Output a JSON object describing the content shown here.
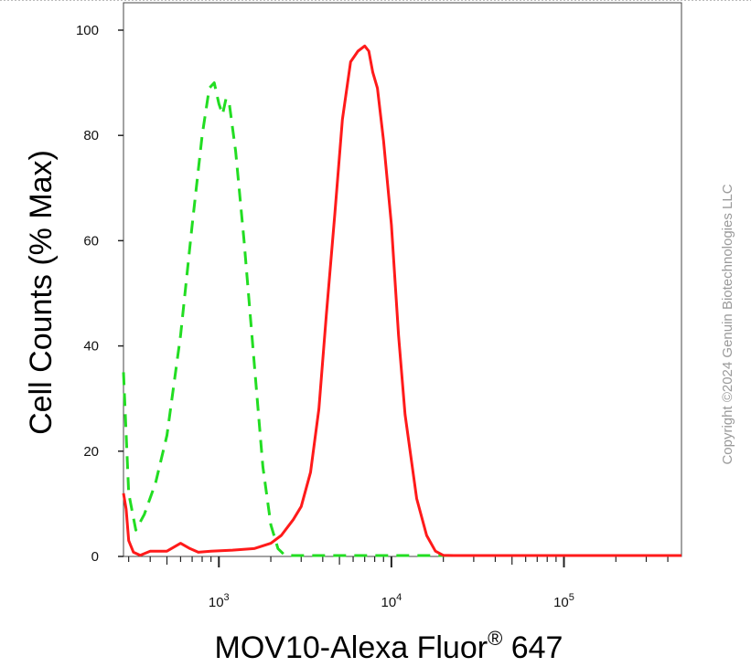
{
  "chart_data": {
    "type": "line",
    "xlabel": "MOV10-Alexa Fluor",
    "xlabel_superscript": "®",
    "xlabel_suffix": " 647",
    "ylabel": "Cell Counts (% Max)",
    "x_scale": "log",
    "xlim": [
      280,
      480000
    ],
    "ylim": [
      0,
      105
    ],
    "y_ticks": [
      0,
      20,
      40,
      60,
      80,
      100
    ],
    "x_ticks": [
      {
        "base": "10",
        "exp": "3",
        "value": 1000
      },
      {
        "base": "10",
        "exp": "4",
        "value": 10000
      },
      {
        "base": "10",
        "exp": "5",
        "value": 100000
      }
    ],
    "series": [
      {
        "color": "#22dd22",
        "style": "dashed",
        "x": [
          280,
          300,
          330,
          370,
          430,
          500,
          600,
          700,
          800,
          880,
          940,
          1000,
          1050,
          1100,
          1150,
          1250,
          1400,
          1600,
          1800,
          2000,
          2200,
          2400,
          2700,
          3500,
          6000,
          10000,
          20000,
          100000,
          480000
        ],
        "y": [
          35,
          12,
          5,
          8,
          14,
          23,
          42,
          63,
          80,
          89,
          90,
          86,
          84,
          87,
          86,
          77,
          60,
          37,
          17,
          6,
          1.5,
          0.3,
          0,
          0,
          0,
          0,
          0,
          0,
          0
        ]
      },
      {
        "color": "#ff1a1a",
        "style": "solid",
        "x": [
          280,
          290,
          300,
          320,
          350,
          400,
          500,
          600,
          680,
          760,
          900,
          1200,
          1600,
          2000,
          2300,
          2700,
          3000,
          3400,
          3800,
          4200,
          4700,
          5200,
          5800,
          6400,
          7000,
          7400,
          7800,
          8300,
          9000,
          10000,
          11000,
          12000,
          14000,
          16000,
          18000,
          20000,
          23000,
          30000,
          100000,
          480000
        ],
        "y": [
          12,
          9,
          3,
          0.8,
          0.2,
          1,
          1,
          2.5,
          1.5,
          0.8,
          1,
          1.2,
          1.5,
          2.5,
          4,
          7,
          9.5,
          16,
          28,
          46,
          65,
          83,
          94,
          96,
          97,
          96,
          92,
          89,
          79,
          63,
          42,
          27,
          11,
          4,
          1,
          0.2,
          0,
          0,
          0,
          0
        ]
      }
    ]
  },
  "copyright": "Copyright ©2024 Genuin Biotechnologies LLC"
}
